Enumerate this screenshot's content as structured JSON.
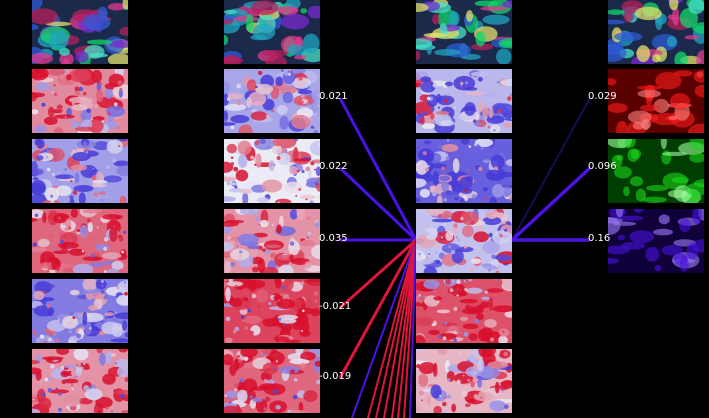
{
  "columns": [
    {
      "id": "col-a",
      "tiles": [
        {
          "kind": "rgb-mix",
          "seed": 1
        },
        {
          "kind": "heat",
          "bias": 0.72,
          "seed": 2
        },
        {
          "kind": "heat",
          "bias": 0.28,
          "seed": 3
        },
        {
          "kind": "heat",
          "bias": 0.8,
          "seed": 4
        },
        {
          "kind": "heat",
          "bias": 0.18,
          "seed": 5
        },
        {
          "kind": "heat",
          "bias": 0.7,
          "seed": 6
        }
      ]
    },
    {
      "id": "col-b",
      "tiles": [
        {
          "kind": "rgb-mix",
          "seed": 7
        },
        {
          "kind": "heat",
          "bias": 0.3,
          "seed": 8
        },
        {
          "kind": "heat",
          "bias": 0.5,
          "seed": 9
        },
        {
          "kind": "heat",
          "bias": 0.7,
          "seed": 10
        },
        {
          "kind": "heat",
          "bias": 0.88,
          "seed": 11
        },
        {
          "kind": "heat",
          "bias": 0.8,
          "seed": 12
        }
      ]
    },
    {
      "id": "col-c",
      "tiles": [
        {
          "kind": "rgb-mix",
          "seed": 13
        },
        {
          "kind": "heat",
          "bias": 0.35,
          "seed": 14
        },
        {
          "kind": "heat",
          "bias": 0.1,
          "seed": 15
        },
        {
          "kind": "heat",
          "bias": 0.38,
          "seed": 16
        },
        {
          "kind": "heat",
          "bias": 0.85,
          "seed": 17
        },
        {
          "kind": "heat",
          "bias": 0.62,
          "seed": 18
        }
      ]
    },
    {
      "id": "col-d",
      "tiles": [
        {
          "kind": "rgb-mix",
          "seed": 19
        },
        {
          "kind": "channel",
          "channel": "red",
          "seed": 20
        },
        {
          "kind": "channel",
          "channel": "green",
          "seed": 21
        },
        {
          "kind": "channel",
          "channel": "blue",
          "seed": 22
        }
      ]
    }
  ],
  "weights_in": [
    {
      "label": "0.021",
      "color": "#4b12e6",
      "from_row": 1
    },
    {
      "label": "0.022",
      "color": "#4b12e6",
      "from_row": 2
    },
    {
      "label": "0.035",
      "color": "#4b12e6",
      "from_row": 3
    },
    {
      "label": "-0.021",
      "color": "#e0153a",
      "from_row": 4
    },
    {
      "label": "-0.019",
      "color": "#e0153a",
      "from_row": 5
    }
  ],
  "weights_out": [
    {
      "label": "0.029",
      "color": "#1a0a55",
      "to_row": 1
    },
    {
      "label": "0.096",
      "color": "#4b12e6",
      "to_row": 2
    },
    {
      "label": "0.16",
      "color": "#4b12e6",
      "to_row": 3
    }
  ],
  "offscreen_wires": [
    {
      "color": "#4b12e6"
    },
    {
      "color": "#e0153a"
    },
    {
      "color": "#e0153a"
    },
    {
      "color": "#e0153a"
    },
    {
      "color": "#e0153a"
    },
    {
      "color": "#e0153a"
    },
    {
      "color": "#e0153a"
    },
    {
      "color": "#4b12e6"
    }
  ]
}
